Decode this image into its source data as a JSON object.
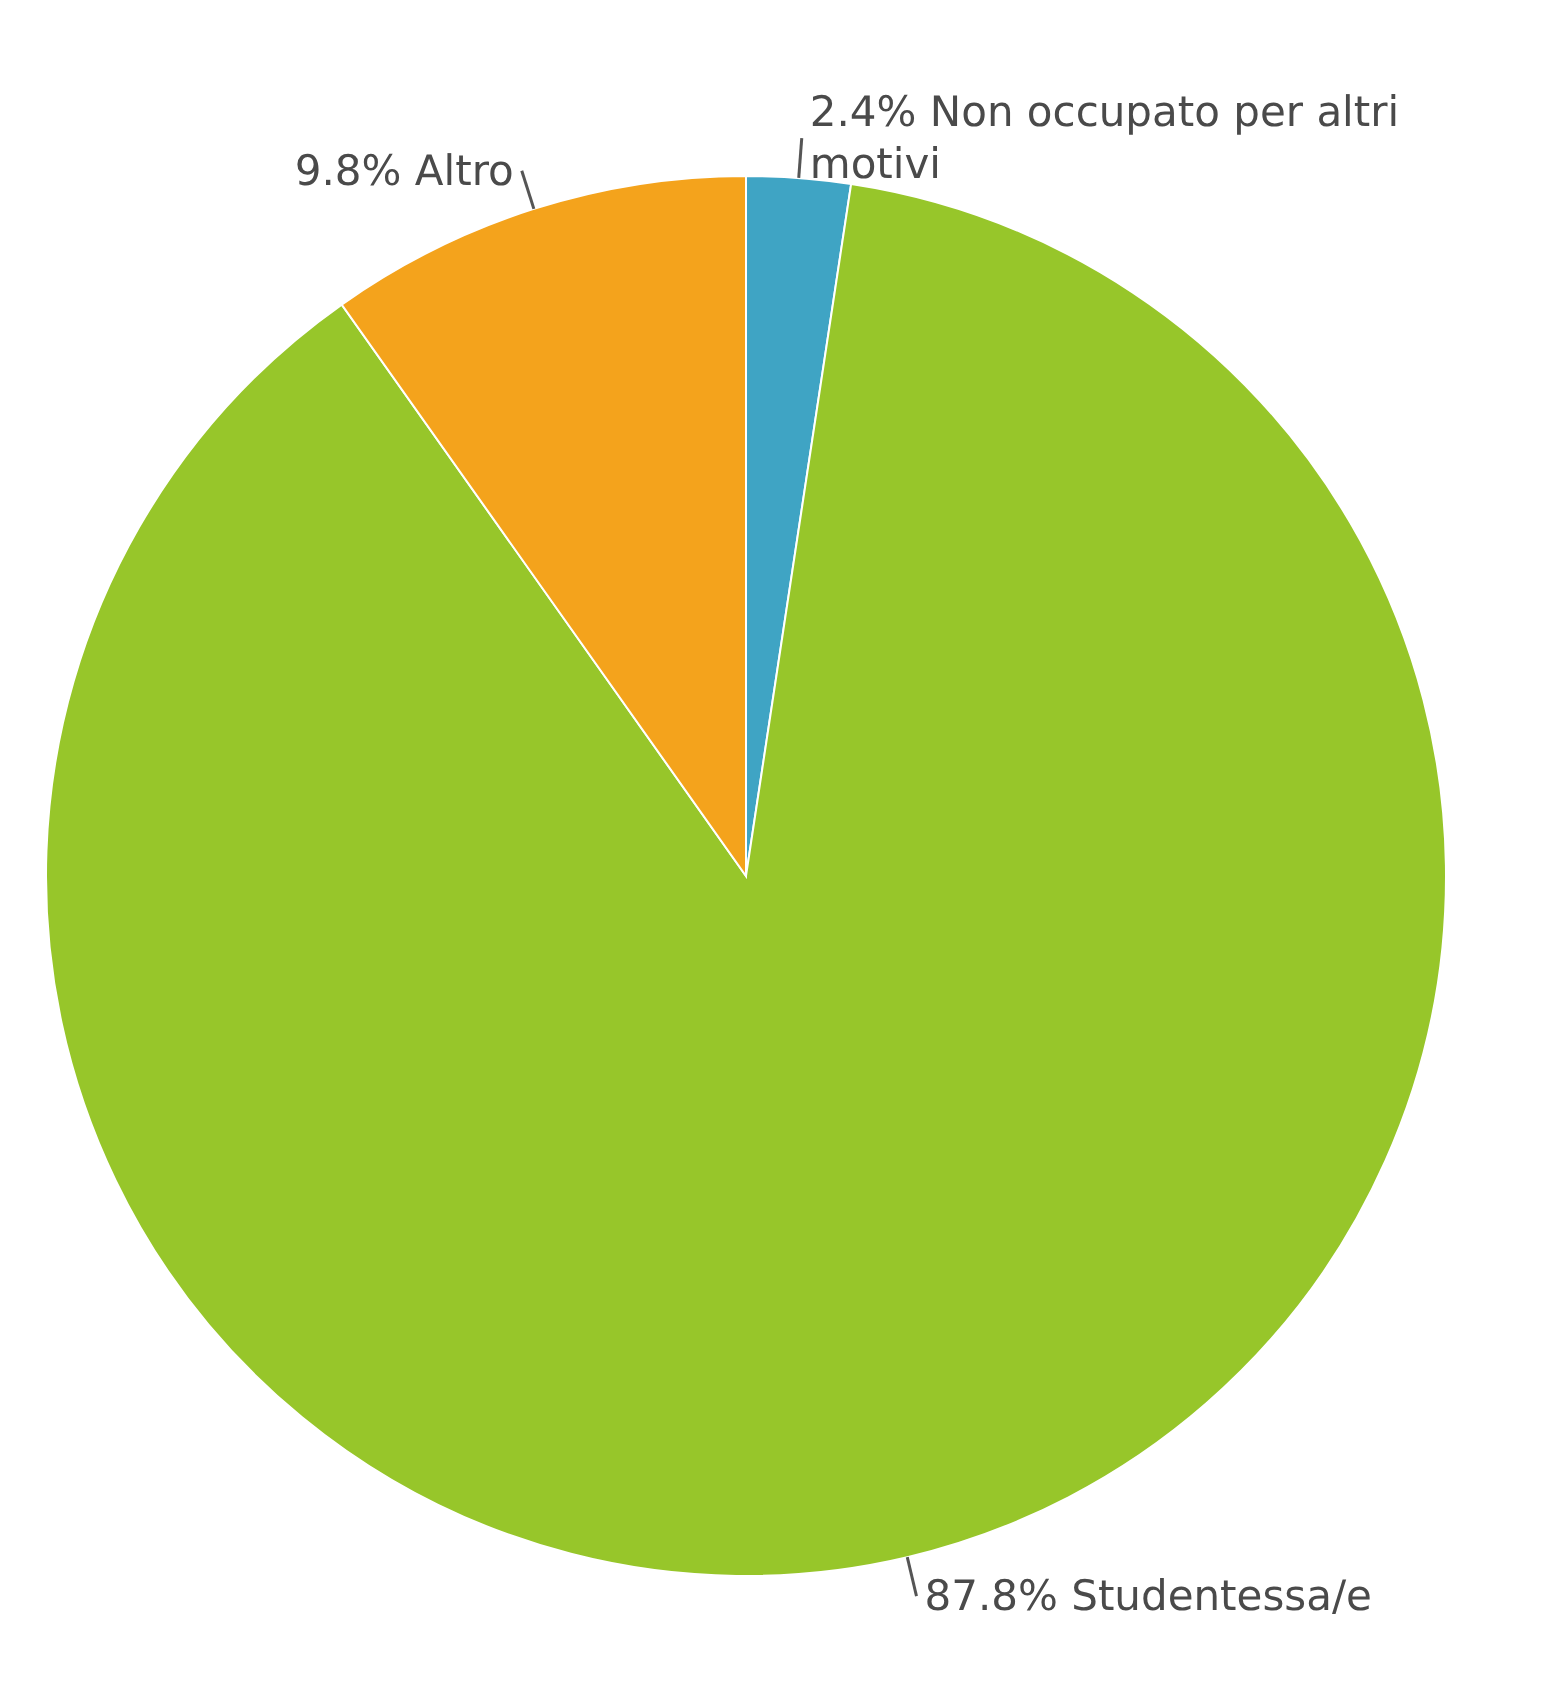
{
  "chart_data": {
    "type": "pie",
    "categories": [
      "Non occupato per altri motivi",
      "Studentessa/e",
      "Altro"
    ],
    "values": [
      2.4,
      87.8,
      9.8
    ],
    "value_labels": [
      "2.4%",
      "87.8%",
      "9.8%"
    ],
    "colors": [
      "#3fa4c4",
      "#97c62a",
      "#f4a31c"
    ],
    "legend": false
  }
}
